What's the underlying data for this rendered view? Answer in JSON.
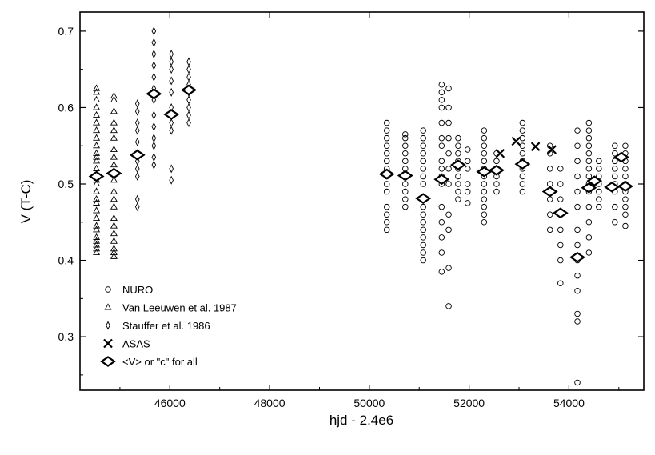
{
  "chart_data": {
    "type": "scatter",
    "xlabel": "hjd - 2.4e6",
    "ylabel": "V (T-C)",
    "xlim": [
      44200,
      55500
    ],
    "ylim": [
      0.23,
      0.725
    ],
    "xticks": [
      46000,
      48000,
      50000,
      52000,
      54000
    ],
    "yticks": [
      0.3,
      0.4,
      0.5,
      0.6,
      0.7
    ],
    "grid": false,
    "legend_position": "bottom-left",
    "legend": [
      {
        "name": "NURO",
        "marker": "circle"
      },
      {
        "name": "Van Leeuwen et al. 1987",
        "marker": "triangle"
      },
      {
        "name": "Stauffer et al. 1986",
        "marker": "thin-diamond"
      },
      {
        "name": "ASAS",
        "marker": "x"
      },
      {
        "name": "<V> or \"c\" for all",
        "marker": "bold-diamond"
      }
    ],
    "series": [
      {
        "name": "Van Leeuwen et al. 1987",
        "marker": "triangle",
        "groups": [
          {
            "x": 44530,
            "y": [
              0.41,
              0.415,
              0.42,
              0.425,
              0.43,
              0.44,
              0.445,
              0.455,
              0.465,
              0.475,
              0.48,
              0.49,
              0.5,
              0.505,
              0.51,
              0.52,
              0.53,
              0.535,
              0.54,
              0.55,
              0.56,
              0.57,
              0.58,
              0.59,
              0.6,
              0.61,
              0.62,
              0.625
            ]
          },
          {
            "x": 44880,
            "y": [
              0.405,
              0.41,
              0.415,
              0.425,
              0.435,
              0.445,
              0.455,
              0.47,
              0.48,
              0.49,
              0.505,
              0.515,
              0.525,
              0.535,
              0.545,
              0.56,
              0.57,
              0.58,
              0.595,
              0.61,
              0.615
            ]
          }
        ]
      },
      {
        "name": "Stauffer et al. 1986",
        "marker": "thin-diamond",
        "groups": [
          {
            "x": 45350,
            "y": [
              0.47,
              0.48,
              0.51,
              0.52,
              0.53,
              0.54,
              0.555,
              0.57,
              0.58,
              0.595,
              0.605
            ]
          },
          {
            "x": 45680,
            "y": [
              0.525,
              0.535,
              0.55,
              0.56,
              0.575,
              0.59,
              0.61,
              0.625,
              0.64,
              0.655,
              0.67,
              0.685,
              0.7
            ]
          },
          {
            "x": 46030,
            "y": [
              0.505,
              0.52,
              0.57,
              0.58,
              0.6,
              0.62,
              0.635,
              0.65,
              0.66,
              0.67
            ]
          },
          {
            "x": 46380,
            "y": [
              0.58,
              0.59,
              0.6,
              0.61,
              0.62,
              0.63,
              0.64,
              0.65,
              0.66
            ]
          }
        ]
      },
      {
        "name": "NURO",
        "marker": "circle",
        "groups": [
          {
            "x": 50350,
            "y": [
              0.44,
              0.45,
              0.46,
              0.47,
              0.49,
              0.5,
              0.51,
              0.52,
              0.53,
              0.54,
              0.55,
              0.56,
              0.57,
              0.58
            ]
          },
          {
            "x": 50720,
            "y": [
              0.47,
              0.48,
              0.49,
              0.5,
              0.51,
              0.52,
              0.53,
              0.54,
              0.55,
              0.56,
              0.565
            ]
          },
          {
            "x": 51080,
            "y": [
              0.4,
              0.41,
              0.42,
              0.43,
              0.44,
              0.45,
              0.46,
              0.47,
              0.5,
              0.51,
              0.52,
              0.53,
              0.54,
              0.55,
              0.56,
              0.57
            ]
          },
          {
            "x": 51450,
            "y": [
              0.385,
              0.41,
              0.43,
              0.45,
              0.47,
              0.5,
              0.51,
              0.52,
              0.53,
              0.55,
              0.56,
              0.58,
              0.6,
              0.61,
              0.62,
              0.63
            ]
          },
          {
            "x": 51590,
            "y": [
              0.34,
              0.39,
              0.44,
              0.46,
              0.5,
              0.52,
              0.54,
              0.56,
              0.58,
              0.6,
              0.625
            ]
          },
          {
            "x": 51780,
            "y": [
              0.48,
              0.49,
              0.5,
              0.51,
              0.52,
              0.53,
              0.54,
              0.55,
              0.56
            ]
          },
          {
            "x": 51970,
            "y": [
              0.475,
              0.49,
              0.5,
              0.52,
              0.53,
              0.545
            ]
          },
          {
            "x": 52300,
            "y": [
              0.45,
              0.46,
              0.47,
              0.48,
              0.49,
              0.5,
              0.51,
              0.52,
              0.53,
              0.54,
              0.55,
              0.56,
              0.57
            ]
          },
          {
            "x": 52550,
            "y": [
              0.49,
              0.5,
              0.51,
              0.52,
              0.53,
              0.54
            ]
          },
          {
            "x": 53070,
            "y": [
              0.49,
              0.5,
              0.51,
              0.52,
              0.53,
              0.54,
              0.55,
              0.56,
              0.57,
              0.58
            ]
          },
          {
            "x": 53620,
            "y": [
              0.44,
              0.46,
              0.48,
              0.5,
              0.52,
              0.54,
              0.55
            ]
          },
          {
            "x": 53830,
            "y": [
              0.37,
              0.4,
              0.42,
              0.44,
              0.46,
              0.48,
              0.5,
              0.52
            ]
          },
          {
            "x": 54170,
            "y": [
              0.24,
              0.32,
              0.33,
              0.36,
              0.38,
              0.4,
              0.42,
              0.44,
              0.47,
              0.49,
              0.51,
              0.53,
              0.55,
              0.57
            ]
          },
          {
            "x": 54400,
            "y": [
              0.41,
              0.43,
              0.45,
              0.47,
              0.49,
              0.5,
              0.51,
              0.52,
              0.53,
              0.54,
              0.55,
              0.56,
              0.57,
              0.58
            ]
          },
          {
            "x": 54600,
            "y": [
              0.47,
              0.48,
              0.49,
              0.5,
              0.51,
              0.52,
              0.53
            ]
          },
          {
            "x": 54920,
            "y": [
              0.45,
              0.47,
              0.49,
              0.5,
              0.51,
              0.52,
              0.53,
              0.54,
              0.55
            ]
          },
          {
            "x": 55130,
            "y": [
              0.445,
              0.46,
              0.47,
              0.48,
              0.49,
              0.5,
              0.51,
              0.52,
              0.53,
              0.54,
              0.55
            ]
          }
        ]
      },
      {
        "name": "ASAS",
        "marker": "x",
        "points": [
          {
            "x": 52620,
            "y": 0.54
          },
          {
            "x": 52940,
            "y": 0.556
          },
          {
            "x": 53330,
            "y": 0.549
          },
          {
            "x": 53660,
            "y": 0.545
          }
        ]
      },
      {
        "name": "<V> or \"c\" for all",
        "marker": "bold-diamond",
        "points": [
          {
            "x": 44530,
            "y": 0.51
          },
          {
            "x": 44880,
            "y": 0.514
          },
          {
            "x": 45350,
            "y": 0.538
          },
          {
            "x": 45680,
            "y": 0.618
          },
          {
            "x": 46030,
            "y": 0.591
          },
          {
            "x": 46380,
            "y": 0.623
          },
          {
            "x": 50350,
            "y": 0.513
          },
          {
            "x": 50720,
            "y": 0.511
          },
          {
            "x": 51080,
            "y": 0.481
          },
          {
            "x": 51450,
            "y": 0.506
          },
          {
            "x": 51780,
            "y": 0.525
          },
          {
            "x": 52300,
            "y": 0.516
          },
          {
            "x": 52550,
            "y": 0.518
          },
          {
            "x": 53070,
            "y": 0.526
          },
          {
            "x": 53620,
            "y": 0.49
          },
          {
            "x": 53830,
            "y": 0.462
          },
          {
            "x": 54170,
            "y": 0.404
          },
          {
            "x": 54400,
            "y": 0.495
          },
          {
            "x": 54510,
            "y": 0.504
          },
          {
            "x": 54860,
            "y": 0.496
          },
          {
            "x": 55130,
            "y": 0.497
          },
          {
            "x": 55050,
            "y": 0.535
          }
        ]
      }
    ]
  }
}
